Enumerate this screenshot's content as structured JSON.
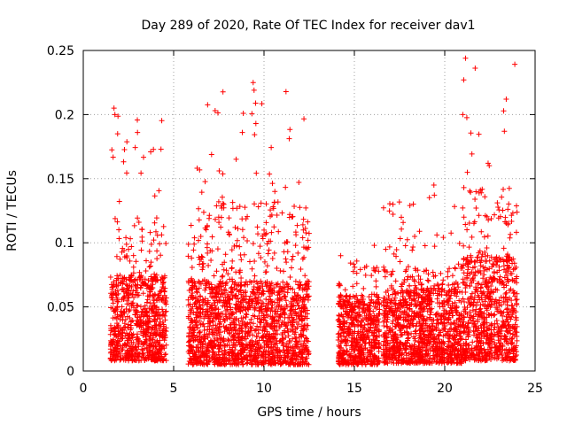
{
  "chart_data": {
    "type": "scatter",
    "title": "Day 289 of 2020, Rate Of TEC Index for receiver dav1",
    "xlabel": "GPS time / hours",
    "ylabel": "ROTI / TECUs",
    "xlim": [
      0,
      25
    ],
    "ylim": [
      0,
      0.25
    ],
    "x_ticks": [
      0,
      5,
      10,
      15,
      20,
      25
    ],
    "y_ticks": [
      0,
      0.05,
      0.1,
      0.15,
      0.2,
      0.25
    ],
    "x_tick_labels": [
      "0",
      "5",
      "10",
      "15",
      "20",
      "25"
    ],
    "y_tick_labels": [
      "0",
      "0.05",
      "0.1",
      "0.15",
      "0.2",
      "0.25"
    ],
    "grid": true,
    "marker": "plus",
    "color": "#ff0000",
    "segments": [
      {
        "x_start": 1.5,
        "x_end": 4.6,
        "base_low": 0.008,
        "base_high": 0.075,
        "peak": 0.2
      },
      {
        "x_start": 5.8,
        "x_end": 12.5,
        "base_low": 0.005,
        "base_high": 0.07,
        "peak": 0.22
      },
      {
        "x_start": 14.1,
        "x_end": 16.4,
        "base_low": 0.005,
        "base_high": 0.06,
        "peak": 0.09
      },
      {
        "x_start": 16.6,
        "x_end": 21.0,
        "base_low": 0.006,
        "base_high": 0.065,
        "peak": 0.14
      },
      {
        "x_start": 21.0,
        "x_end": 24.0,
        "base_low": 0.008,
        "base_high": 0.09,
        "peak": 0.24
      }
    ],
    "outliers": [
      {
        "x": 1.7,
        "y": 0.205
      },
      {
        "x": 1.75,
        "y": 0.2
      },
      {
        "x": 1.9,
        "y": 0.185
      },
      {
        "x": 3.0,
        "y": 0.186
      },
      {
        "x": 4.3,
        "y": 0.173
      },
      {
        "x": 9.4,
        "y": 0.225
      },
      {
        "x": 9.45,
        "y": 0.219
      },
      {
        "x": 9.55,
        "y": 0.193
      },
      {
        "x": 8.8,
        "y": 0.186
      },
      {
        "x": 10.6,
        "y": 0.14
      },
      {
        "x": 16.1,
        "y": 0.098
      },
      {
        "x": 19.4,
        "y": 0.145
      },
      {
        "x": 21.15,
        "y": 0.244
      },
      {
        "x": 21.05,
        "y": 0.227
      },
      {
        "x": 21.0,
        "y": 0.2
      },
      {
        "x": 23.3,
        "y": 0.187
      },
      {
        "x": 22.4,
        "y": 0.162
      }
    ]
  }
}
